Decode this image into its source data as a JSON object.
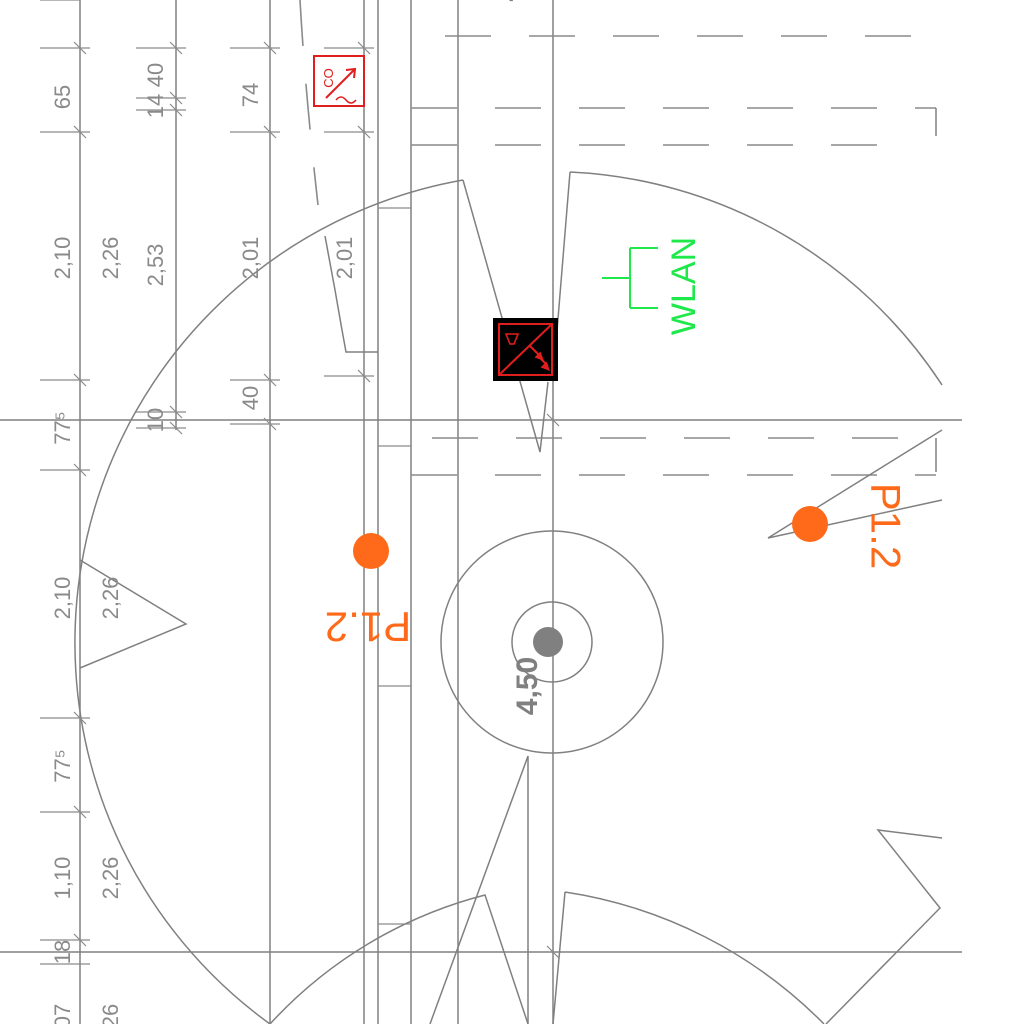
{
  "dimensions": {
    "col1": [
      "65",
      "2,10",
      "77⁵",
      "2,10",
      "77⁵",
      "1,10",
      "18",
      "07"
    ],
    "col2": [
      "2,26",
      "2,26",
      "2,26",
      "26"
    ],
    "col3": [
      "14",
      "40",
      "2,53",
      "10"
    ],
    "col4": [
      "74",
      "2,01",
      "40"
    ],
    "col5": [
      "2,01"
    ],
    "top_partial": "7",
    "radius": "4,50"
  },
  "labels": {
    "wlan": "WLAN",
    "p1_left": "P1.2",
    "p1_right": "P1.2",
    "co_symbol": "CO"
  },
  "colors": {
    "lines": "#808080",
    "orange": "#ff6a1a",
    "green": "#1ee84a",
    "red": "#e01e1e",
    "black": "#000000"
  },
  "icons": [
    "co-detector-icon",
    "smoke-heat-detector-icon",
    "wlan-access-point-icon",
    "luminaire-point-icon",
    "ceiling-outlet-icon"
  ]
}
